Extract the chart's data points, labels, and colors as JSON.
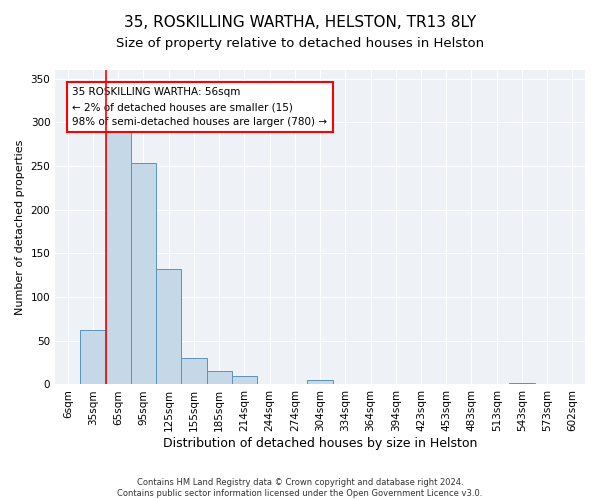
{
  "title": "35, ROSKILLING WARTHA, HELSTON, TR13 8LY",
  "subtitle": "Size of property relative to detached houses in Helston",
  "xlabel": "Distribution of detached houses by size in Helston",
  "ylabel": "Number of detached properties",
  "footer": "Contains HM Land Registry data © Crown copyright and database right 2024.\nContains public sector information licensed under the Open Government Licence v3.0.",
  "categories": [
    "6sqm",
    "35sqm",
    "65sqm",
    "95sqm",
    "125sqm",
    "155sqm",
    "185sqm",
    "214sqm",
    "244sqm",
    "274sqm",
    "304sqm",
    "334sqm",
    "364sqm",
    "394sqm",
    "423sqm",
    "453sqm",
    "483sqm",
    "513sqm",
    "543sqm",
    "573sqm",
    "602sqm"
  ],
  "values": [
    1,
    62,
    290,
    254,
    132,
    30,
    15,
    10,
    0,
    0,
    5,
    0,
    0,
    0,
    0,
    0,
    0,
    0,
    2,
    0,
    0
  ],
  "bar_color": "#c5d8e8",
  "bar_edge_color": "#5a93bb",
  "red_line_x": 1.5,
  "annotation_box_text": "35 ROSKILLING WARTHA: 56sqm\n← 2% of detached houses are smaller (15)\n98% of semi-detached houses are larger (780) →",
  "ylim": [
    0,
    360
  ],
  "yticks": [
    0,
    50,
    100,
    150,
    200,
    250,
    300,
    350
  ],
  "plot_bg_color": "#eef2f7",
  "title_fontsize": 11,
  "subtitle_fontsize": 9.5,
  "tick_fontsize": 7.5,
  "ylabel_fontsize": 8,
  "xlabel_fontsize": 9,
  "annotation_fontsize": 7.5,
  "footer_fontsize": 6
}
